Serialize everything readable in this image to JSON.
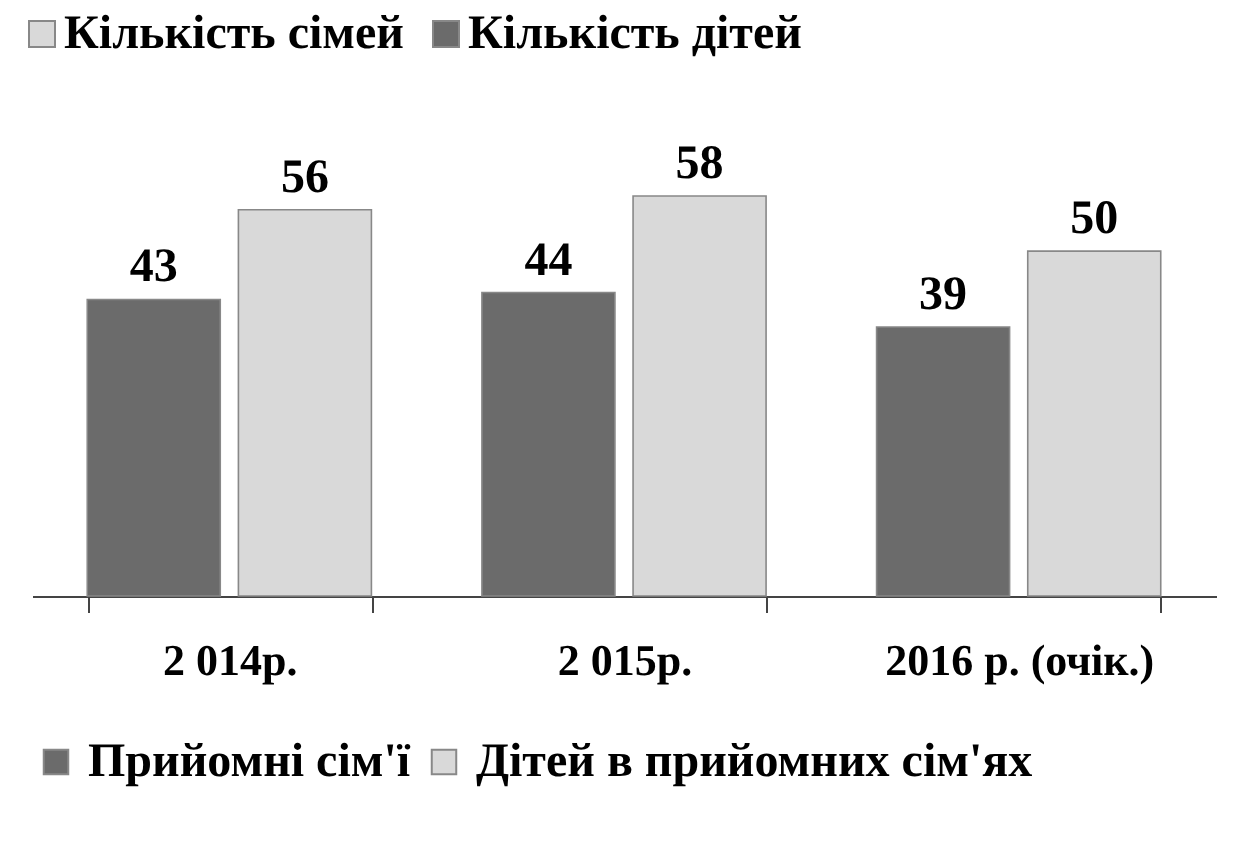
{
  "chart_data": {
    "type": "bar",
    "categories": [
      "2 014р.",
      "2 015р.",
      "2016 р. (очік.)"
    ],
    "series": [
      {
        "name": "Прийомні сім'ї",
        "color": "#6b6b6b",
        "values": [
          43,
          44,
          39
        ]
      },
      {
        "name": "Дітей в прийомних сім'ях",
        "color": "#d9d9d9",
        "values": [
          56,
          58,
          50
        ]
      }
    ],
    "annotations": [
      "Кількість сімей",
      "Кількість дітей"
    ],
    "data_labels": true,
    "legend": "bottom"
  }
}
